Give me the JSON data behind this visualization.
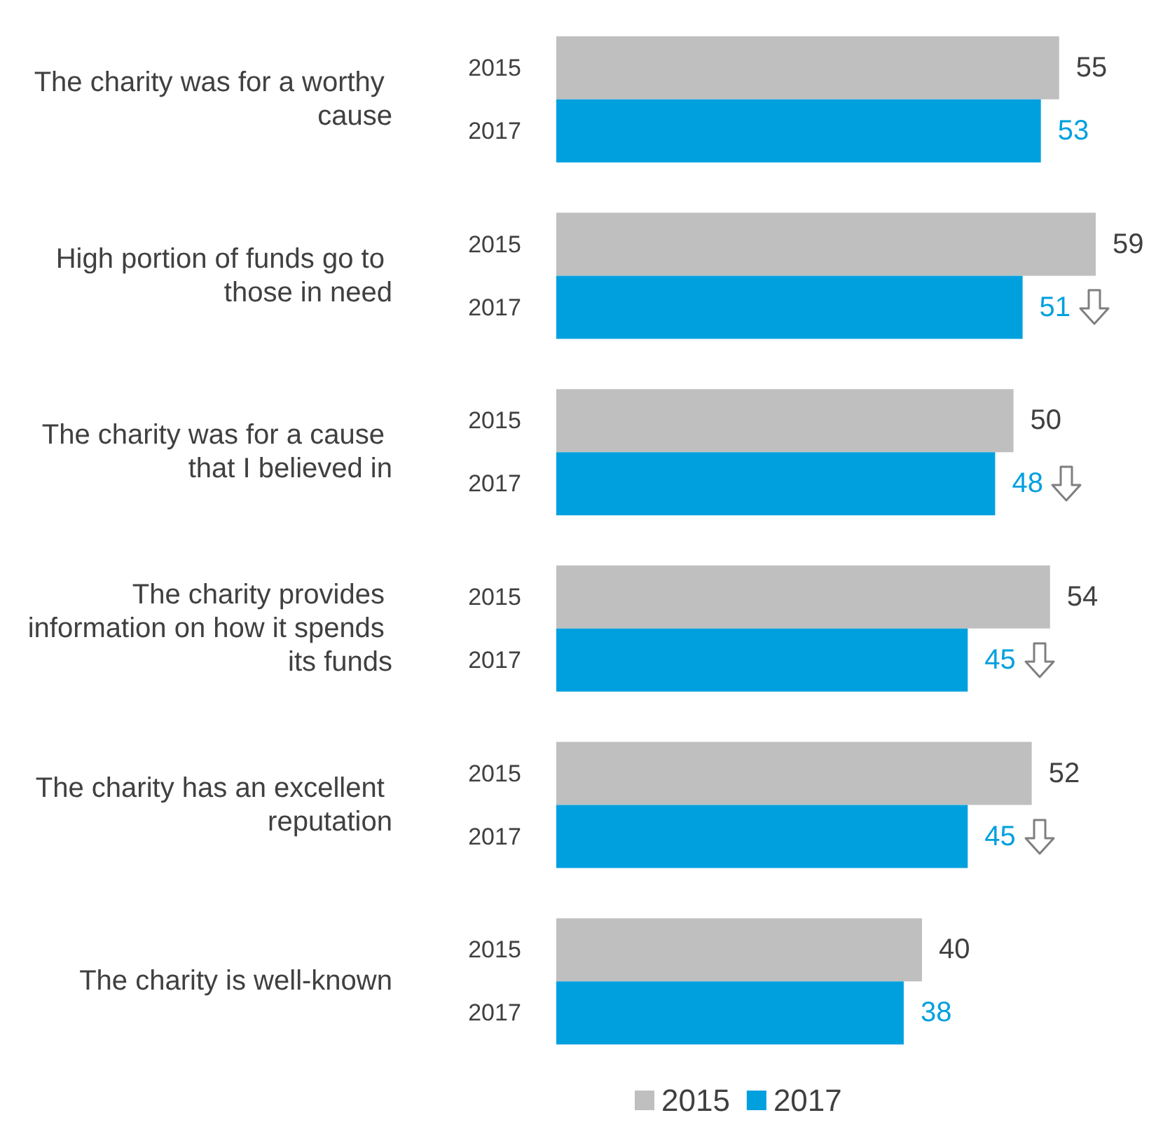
{
  "chart_data": {
    "type": "bar",
    "orientation": "horizontal",
    "categories": [
      "The charity was for a worthy cause",
      "High portion of funds go to those in need",
      "The charity was for a cause that I believed in",
      "The charity provides information on how it spends its funds",
      "The charity has an excellent reputation",
      "The charity is well-known"
    ],
    "series": [
      {
        "name": "2015",
        "color": "#bfbfbf",
        "values": [
          55,
          59,
          50,
          54,
          52,
          40
        ]
      },
      {
        "name": "2017",
        "color": "#00a0df",
        "values": [
          53,
          51,
          48,
          45,
          45,
          38
        ]
      }
    ],
    "data_labels": true,
    "legend": "bottom"
  }
}
